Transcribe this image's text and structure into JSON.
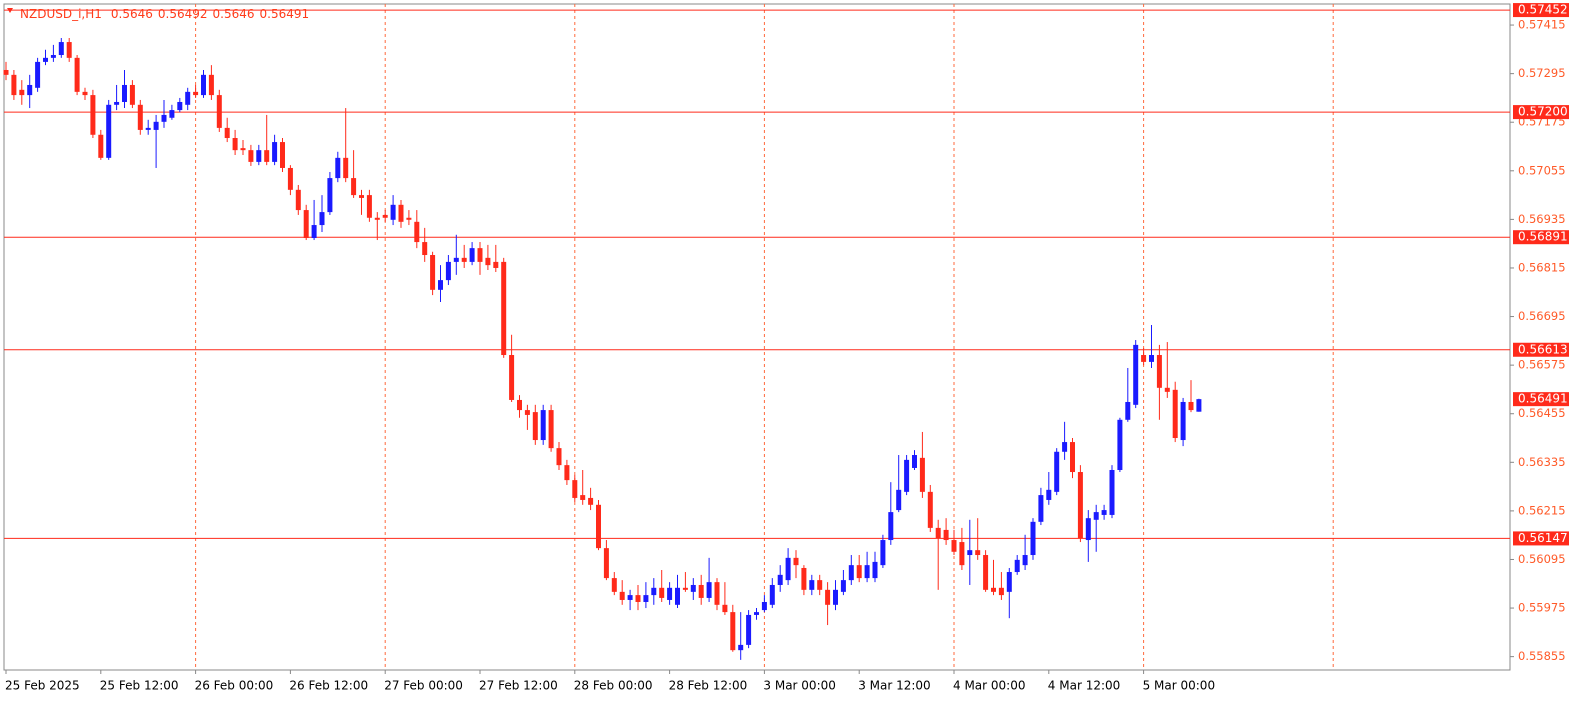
{
  "chart_data": {
    "type": "candlestick",
    "symbol": "NZDUSD_i,H1",
    "categories": [
      "25 Feb 2025",
      null,
      null,
      null,
      null,
      null,
      null,
      null,
      null,
      null,
      null,
      null,
      "25 Feb 12:00",
      null,
      null,
      null,
      null,
      null,
      null,
      null,
      null,
      null,
      null,
      null,
      "26 Feb 00:00",
      null,
      null,
      null,
      null,
      null,
      null,
      null,
      null,
      null,
      null,
      null,
      "26 Feb 12:00",
      null,
      null,
      null,
      null,
      null,
      null,
      null,
      null,
      null,
      null,
      null,
      "27 Feb 00:00",
      null,
      null,
      null,
      null,
      null,
      null,
      null,
      null,
      null,
      null,
      null,
      "27 Feb 12:00",
      null,
      null,
      null,
      null,
      null,
      null,
      null,
      null,
      null,
      null,
      null,
      "28 Feb 00:00",
      null,
      null,
      null,
      null,
      null,
      null,
      null,
      null,
      null,
      null,
      null,
      "28 Feb 12:00",
      null,
      null,
      null,
      null,
      null,
      null,
      null,
      null,
      null,
      null,
      null,
      "3 Mar 00:00",
      null,
      null,
      null,
      null,
      null,
      null,
      null,
      null,
      null,
      null,
      null,
      "3 Mar 12:00",
      null,
      null,
      null,
      null,
      null,
      null,
      null,
      null,
      null,
      null,
      null,
      "4 Mar 00:00",
      null,
      null,
      null,
      null,
      null,
      null,
      null,
      null,
      null,
      null,
      null,
      "4 Mar 12:00",
      null,
      null,
      null,
      null,
      null,
      null,
      null,
      null,
      null,
      null,
      null,
      "5 Mar 00:00",
      null,
      null,
      null,
      null,
      null,
      null,
      null
    ],
    "open": [
      0.57304,
      0.57292,
      0.57255,
      0.57242,
      0.5726,
      0.57324,
      0.57334,
      0.57341,
      0.57373,
      0.57334,
      0.5725,
      0.57242,
      0.57144,
      0.57087,
      0.57218,
      0.57225,
      0.57267,
      0.57218,
      0.57156,
      0.57156,
      0.57176,
      0.57186,
      0.57205,
      0.57218,
      0.5725,
      0.57242,
      0.57292,
      0.57242,
      0.57161,
      0.57136,
      0.57111,
      0.57106,
      0.57077,
      0.57106,
      0.57077,
      0.57126,
      0.57062,
      0.57008,
      0.56958,
      0.56889,
      0.56921,
      0.56953,
      0.57037,
      0.57087,
      0.57037,
      0.56995,
      0.56995,
      0.56939,
      0.56946,
      0.56934,
      0.56971,
      0.56939,
      0.56929,
      0.56879,
      0.56847,
      0.56761,
      0.56785,
      0.5683,
      0.5684,
      0.5683,
      0.56864,
      0.5684,
      0.5683,
      0.5683,
      0.566,
      0.56489,
      0.56464,
      0.56459,
      0.5639,
      0.56464,
      0.5637,
      0.56328,
      0.56291,
      0.56254,
      0.56247,
      0.5623,
      0.56123,
      0.56049,
      0.56015,
      0.55995,
      0.56007,
      0.5599,
      0.56007,
      0.56025,
      0.55995,
      0.55983,
      0.56025,
      0.56015,
      0.56032,
      0.56,
      0.56039,
      0.55983,
      0.55965,
      0.55871,
      0.55884,
      0.55958,
      0.5597,
      0.55983,
      0.56032,
      0.56044,
      0.56099,
      0.56074,
      0.5602,
      0.56044,
      0.5602,
      0.55983,
      0.56015,
      0.56044,
      0.56081,
      0.56049,
      0.56049,
      0.56081,
      0.56143,
      0.56217,
      0.56262,
      0.56321,
      0.56346,
      0.56262,
      0.56173,
      0.56168,
      0.56143,
      0.56138,
      0.56106,
      0.56118,
      0.56106,
      0.56025,
      0.56025,
      0.56015,
      0.56064,
      0.56081,
      0.56106,
      0.56188,
      0.56242,
      0.56262,
      0.56361,
      0.56385,
      0.56311,
      0.56143,
      0.56193,
      0.56205,
      0.56205,
      0.56316,
      0.5644,
      0.56477,
      0.566,
      0.56583,
      0.566,
      0.56519,
      0.56514,
      0.5639,
      0.56484,
      0.5646
    ],
    "high": [
      0.57324,
      0.57304,
      0.57279,
      0.57292,
      0.57334,
      0.57354,
      0.57366,
      0.57383,
      0.57383,
      0.57341,
      0.5726,
      0.57255,
      0.57156,
      0.5723,
      0.57267,
      0.57304,
      0.57279,
      0.5723,
      0.57181,
      0.57193,
      0.5723,
      0.57218,
      0.57235,
      0.5726,
      0.57267,
      0.57304,
      0.57316,
      0.57255,
      0.57186,
      0.57156,
      0.57131,
      0.57119,
      0.57119,
      0.57193,
      0.57144,
      0.57136,
      0.57069,
      0.5702,
      0.56971,
      0.56983,
      0.56995,
      0.57052,
      0.57102,
      0.5721,
      0.57106,
      0.57008,
      0.57008,
      0.56953,
      0.56958,
      0.56995,
      0.56983,
      0.56958,
      0.56958,
      0.56914,
      0.56855,
      0.56822,
      0.56847,
      0.56897,
      0.56872,
      0.56879,
      0.56879,
      0.56872,
      0.56872,
      0.5684,
      0.5665,
      0.56501,
      0.56477,
      0.56477,
      0.56477,
      0.56477,
      0.56385,
      0.56341,
      0.56304,
      0.56316,
      0.56272,
      0.56242,
      0.56143,
      0.56064,
      0.56044,
      0.5602,
      0.56032,
      0.56039,
      0.56049,
      0.56069,
      0.56039,
      0.56057,
      0.56064,
      0.56049,
      0.56057,
      0.56099,
      0.56049,
      0.56039,
      0.55983,
      0.55965,
      0.5597,
      0.55975,
      0.56007,
      0.56049,
      0.56081,
      0.56123,
      0.56118,
      0.56081,
      0.56057,
      0.56057,
      0.56039,
      0.56044,
      0.56069,
      0.56106,
      0.56106,
      0.56114,
      0.56114,
      0.56156,
      0.56286,
      0.56353,
      0.56353,
      0.56365,
      0.5641,
      0.56279,
      0.56193,
      0.56197,
      0.56168,
      0.56173,
      0.56193,
      0.56197,
      0.56118,
      0.56094,
      0.56064,
      0.56074,
      0.56106,
      0.56156,
      0.56197,
      0.56272,
      0.56311,
      0.5637,
      0.56435,
      0.56395,
      0.56328,
      0.56217,
      0.5623,
      0.5623,
      0.56328,
      0.56445,
      0.56568,
      0.56637,
      0.56617,
      0.56674,
      0.56625,
      0.56632,
      0.56534,
      0.56494,
      0.56538,
      0.56492
    ],
    "low": [
      0.57279,
      0.5723,
      0.57218,
      0.5721,
      0.5725,
      0.57316,
      0.57324,
      0.57334,
      0.57324,
      0.57242,
      0.5723,
      0.57136,
      0.57082,
      0.57082,
      0.57205,
      0.5721,
      0.5721,
      0.57144,
      0.57144,
      0.57062,
      0.57161,
      0.57181,
      0.572,
      0.57205,
      0.57235,
      0.57235,
      0.5723,
      0.57151,
      0.57126,
      0.57094,
      0.57094,
      0.57067,
      0.57069,
      0.57069,
      0.57069,
      0.57052,
      0.56995,
      0.56946,
      0.56884,
      0.56884,
      0.56904,
      0.56946,
      0.57027,
      0.57027,
      0.56988,
      0.56946,
      0.56929,
      0.56884,
      0.56929,
      0.56921,
      0.56914,
      0.56921,
      0.56864,
      0.5683,
      0.56748,
      0.56731,
      0.56773,
      0.56798,
      0.56815,
      0.56822,
      0.56798,
      0.5681,
      0.56805,
      0.56593,
      0.56484,
      0.56445,
      0.56415,
      0.56378,
      0.56378,
      0.56361,
      0.56316,
      0.56279,
      0.56237,
      0.5623,
      0.56217,
      0.56118,
      0.56044,
      0.56007,
      0.55983,
      0.5597,
      0.5597,
      0.55975,
      0.55983,
      0.5599,
      0.55983,
      0.55975,
      0.56015,
      0.55995,
      0.55983,
      0.5599,
      0.5597,
      0.55958,
      0.55867,
      0.55847,
      0.55876,
      0.55946,
      0.55965,
      0.55975,
      0.56015,
      0.56032,
      0.56049,
      0.56007,
      0.56007,
      0.56007,
      0.55933,
      0.5597,
      0.56007,
      0.56032,
      0.56039,
      0.56039,
      0.56039,
      0.56074,
      0.56131,
      0.56212,
      0.56254,
      0.56316,
      0.56247,
      0.56163,
      0.5602,
      0.56131,
      0.56106,
      0.56069,
      0.56032,
      0.56094,
      0.56015,
      0.56007,
      0.55995,
      0.5595,
      0.56057,
      0.56069,
      0.56094,
      0.5618,
      0.5623,
      0.56254,
      0.56341,
      0.56296,
      0.56138,
      0.56089,
      0.56114,
      0.56193,
      0.56197,
      0.56311,
      0.56435,
      0.56469,
      0.56575,
      0.56568,
      0.5644,
      0.56494,
      0.56385,
      0.56375,
      0.56459,
      0.5646
    ],
    "close": [
      0.57292,
      0.57242,
      0.57242,
      0.57267,
      0.57324,
      0.57334,
      0.57341,
      0.57373,
      0.57334,
      0.5725,
      0.57242,
      0.57144,
      0.57087,
      0.57218,
      0.57225,
      0.57267,
      0.57218,
      0.57156,
      0.57161,
      0.57176,
      0.57193,
      0.57205,
      0.57225,
      0.5725,
      0.57242,
      0.57292,
      0.57242,
      0.57161,
      0.57136,
      0.57106,
      0.57106,
      0.57077,
      0.57106,
      0.57077,
      0.57126,
      0.57062,
      0.57008,
      0.56958,
      0.56889,
      0.56921,
      0.56953,
      0.57037,
      0.57087,
      0.57037,
      0.56995,
      0.56988,
      0.56939,
      0.56934,
      0.56939,
      0.56971,
      0.56929,
      0.56934,
      0.56879,
      0.56847,
      0.56761,
      0.56785,
      0.5683,
      0.5684,
      0.5683,
      0.56864,
      0.5683,
      0.56822,
      0.56815,
      0.566,
      0.56489,
      0.56464,
      0.56452,
      0.5639,
      0.56464,
      0.5637,
      0.56328,
      0.56291,
      0.56247,
      0.56242,
      0.5623,
      0.56123,
      0.56049,
      0.56015,
      0.55995,
      0.56007,
      0.5599,
      0.56007,
      0.56025,
      0.56,
      0.56025,
      0.56025,
      0.5602,
      0.56032,
      0.56,
      0.56039,
      0.55983,
      0.55965,
      0.55871,
      0.55884,
      0.55958,
      0.55965,
      0.5599,
      0.56032,
      0.56057,
      0.56099,
      0.56081,
      0.5602,
      0.56044,
      0.5602,
      0.55983,
      0.5602,
      0.56044,
      0.56081,
      0.56049,
      0.56081,
      0.56089,
      0.56143,
      0.56212,
      0.56267,
      0.56341,
      0.56353,
      0.56262,
      0.56173,
      0.56148,
      0.56143,
      0.56114,
      0.56081,
      0.56118,
      0.56106,
      0.5602,
      0.56015,
      0.56007,
      0.56064,
      0.56094,
      0.56106,
      0.56188,
      0.56254,
      0.56267,
      0.56361,
      0.56385,
      0.56311,
      0.56148,
      0.56197,
      0.56212,
      0.56217,
      0.56316,
      0.5644,
      0.56484,
      0.56625,
      0.56583,
      0.566,
      0.56519,
      0.56509,
      0.56395,
      0.56484,
      0.56464,
      0.56491
    ],
    "up_color": "#1a1aff",
    "down_color": "#ff2a1a",
    "ylim": [
      0.55822,
      0.57467
    ],
    "yticks": [
      0.57415,
      0.57295,
      0.57175,
      0.57055,
      0.56935,
      0.56815,
      0.56695,
      0.56575,
      0.56455,
      0.56335,
      0.56215,
      0.56095,
      0.55975,
      0.55855
    ],
    "levels": [
      0.57452,
      {
        "value": 0.572,
        "label": "0.57200"
      },
      0.56891,
      0.56613,
      0.56147
    ],
    "level_color": "#ff2a1a",
    "grid": true,
    "grid_color": "#ff6a3d"
  }
}
